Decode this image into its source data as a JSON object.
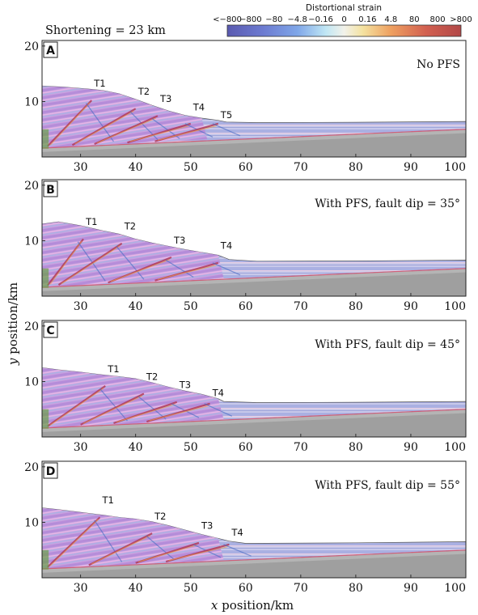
{
  "shortening_label": "Shortening = 23 km",
  "colorbar": {
    "title": "Distortional strain",
    "ticks": [
      "<−800",
      "−800",
      "−80",
      "−4.8",
      "−0.16",
      "0",
      "0.16",
      "4.8",
      "80",
      "800",
      ">800"
    ]
  },
  "x_label_italic": "x",
  "x_label_rest": " position/km",
  "y_label_italic": "y",
  "y_label_rest": " position/km",
  "chart_data": {
    "type": "other",
    "x_ticks": [
      30,
      40,
      50,
      60,
      70,
      80,
      90,
      100
    ],
    "y_ticks": [
      10,
      20
    ],
    "xlim": [
      23,
      100
    ],
    "ylim": [
      0,
      21
    ],
    "panels": [
      {
        "letter": "A",
        "condition": "No PFS",
        "top_surface": [
          [
            23,
            12.8
          ],
          [
            27,
            12.6
          ],
          [
            31,
            12.3
          ],
          [
            34,
            12.0
          ],
          [
            37,
            11.4
          ],
          [
            40,
            10.4
          ],
          [
            43,
            9.3
          ],
          [
            46,
            8.3
          ],
          [
            49,
            7.5
          ],
          [
            52,
            7.0
          ],
          [
            55,
            6.6
          ],
          [
            56.5,
            6.3
          ],
          [
            62,
            6.2
          ],
          [
            80,
            6.25
          ],
          [
            100,
            6.4
          ]
        ],
        "thrusts": [
          {
            "label": "T1",
            "x": 33.5,
            "y": 12.7
          },
          {
            "label": "T2",
            "x": 41.5,
            "y": 11.2
          },
          {
            "label": "T3",
            "x": 45.5,
            "y": 9.9
          },
          {
            "label": "T4",
            "x": 51.5,
            "y": 8.4
          },
          {
            "label": "T5",
            "x": 56.5,
            "y": 7.0
          }
        ]
      },
      {
        "letter": "B",
        "condition": "With PFS, fault dip = 35°",
        "top_surface": [
          [
            23,
            13.0
          ],
          [
            26,
            13.4
          ],
          [
            30,
            12.7
          ],
          [
            34,
            11.8
          ],
          [
            37,
            11.2
          ],
          [
            40,
            10.3
          ],
          [
            43,
            9.6
          ],
          [
            46,
            9.0
          ],
          [
            49,
            8.4
          ],
          [
            52,
            7.9
          ],
          [
            55,
            7.4
          ],
          [
            57,
            6.6
          ],
          [
            62,
            6.3
          ],
          [
            80,
            6.35
          ],
          [
            100,
            6.5
          ]
        ],
        "thrusts": [
          {
            "label": "T1",
            "x": 32,
            "y": 12.8
          },
          {
            "label": "T2",
            "x": 39,
            "y": 12.0
          },
          {
            "label": "T3",
            "x": 48,
            "y": 9.5
          },
          {
            "label": "T4",
            "x": 56.5,
            "y": 8.5
          }
        ]
      },
      {
        "letter": "C",
        "condition": "With PFS, fault dip = 45°",
        "top_surface": [
          [
            23,
            12.5
          ],
          [
            26,
            12.1
          ],
          [
            30,
            11.7
          ],
          [
            34,
            11.2
          ],
          [
            37,
            10.9
          ],
          [
            40,
            10.5
          ],
          [
            43,
            9.8
          ],
          [
            46,
            9.0
          ],
          [
            49,
            8.3
          ],
          [
            52,
            7.7
          ],
          [
            55,
            6.9
          ],
          [
            56,
            6.4
          ],
          [
            62,
            6.2
          ],
          [
            80,
            6.25
          ],
          [
            100,
            6.4
          ]
        ],
        "thrusts": [
          {
            "label": "T1",
            "x": 36,
            "y": 11.7
          },
          {
            "label": "T2",
            "x": 43,
            "y": 10.3
          },
          {
            "label": "T3",
            "x": 49,
            "y": 8.8
          },
          {
            "label": "T4",
            "x": 55,
            "y": 7.4
          }
        ]
      },
      {
        "letter": "D",
        "condition": "With PFS, fault dip = 55°",
        "top_surface": [
          [
            23,
            12.6
          ],
          [
            26,
            12.3
          ],
          [
            30,
            11.8
          ],
          [
            34,
            11.3
          ],
          [
            37,
            10.9
          ],
          [
            40,
            10.6
          ],
          [
            43,
            10.1
          ],
          [
            46,
            9.4
          ],
          [
            49,
            8.6
          ],
          [
            52,
            7.8
          ],
          [
            55,
            7.1
          ],
          [
            57,
            6.6
          ],
          [
            60,
            6.2
          ],
          [
            80,
            6.3
          ],
          [
            100,
            6.5
          ]
        ],
        "thrusts": [
          {
            "label": "T1",
            "x": 35,
            "y": 13.4
          },
          {
            "label": "T2",
            "x": 44.5,
            "y": 10.5
          },
          {
            "label": "T3",
            "x": 53,
            "y": 8.8
          },
          {
            "label": "T4",
            "x": 58.5,
            "y": 7.6
          }
        ]
      }
    ]
  }
}
